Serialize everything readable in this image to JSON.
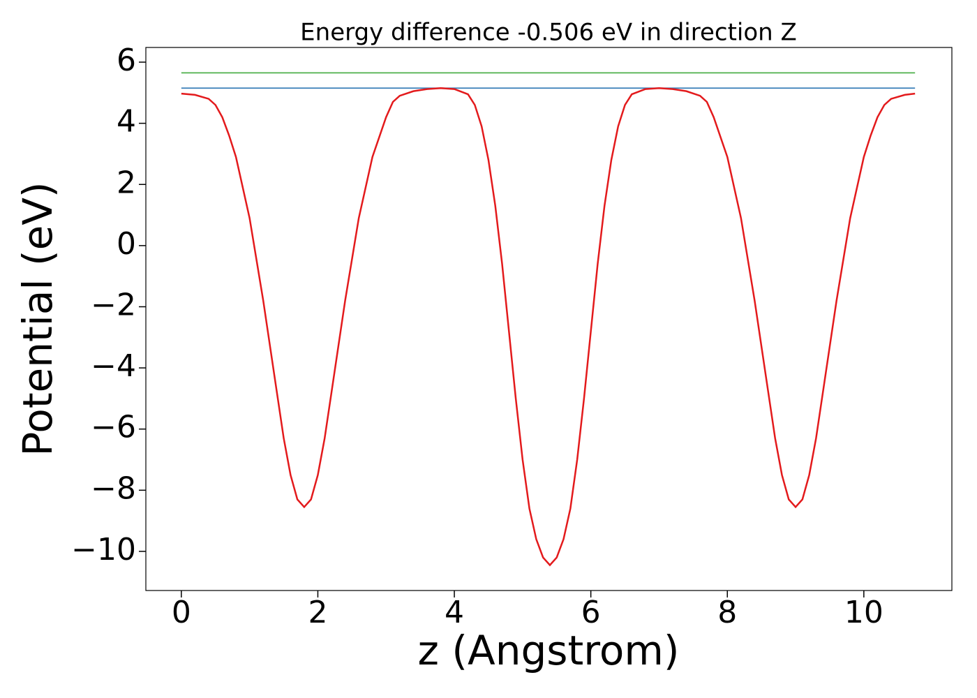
{
  "chart_data": {
    "type": "line",
    "title": "Energy difference -0.506 eV in direction Z",
    "xlabel": "z (Angstrom)",
    "ylabel": "Potential (eV)",
    "xlim": [
      -0.52,
      11.29
    ],
    "ylim": [
      -11.28,
      6.48
    ],
    "xticks": [
      0,
      2,
      4,
      6,
      8,
      10
    ],
    "yticks": [
      {
        "value": -10,
        "label": "−10"
      },
      {
        "value": -8,
        "label": "−8"
      },
      {
        "value": -6,
        "label": "−6"
      },
      {
        "value": -4,
        "label": "−4"
      },
      {
        "value": -2,
        "label": "−2"
      },
      0,
      2,
      4,
      6
    ],
    "grid": false,
    "series": [
      {
        "color": "#e31a1c",
        "x": [
          0,
          0.2,
          0.4,
          0.5,
          0.6,
          0.7,
          0.8,
          1.0,
          1.2,
          1.4,
          1.5,
          1.6,
          1.7,
          1.8,
          1.9,
          2.0,
          2.1,
          2.2,
          2.4,
          2.6,
          2.8,
          3.0,
          3.1,
          3.2,
          3.4,
          3.6,
          3.8,
          4.0,
          4.2,
          4.3,
          4.4,
          4.5,
          4.6,
          4.7,
          4.8,
          4.9,
          5.0,
          5.1,
          5.2,
          5.3,
          5.4,
          5.5,
          5.6,
          5.7,
          5.8,
          5.9,
          6.0,
          6.1,
          6.2,
          6.3,
          6.4,
          6.5,
          6.6,
          6.8,
          7.0,
          7.2,
          7.4,
          7.6,
          7.7,
          7.8,
          8.0,
          8.2,
          8.4,
          8.6,
          8.7,
          8.8,
          8.9,
          9.0,
          9.1,
          9.2,
          9.3,
          9.4,
          9.6,
          9.8,
          10.0,
          10.1,
          10.2,
          10.3,
          10.4,
          10.6,
          10.75
        ],
        "values": [
          4.97,
          4.93,
          4.8,
          4.6,
          4.2,
          3.6,
          2.9,
          0.9,
          -1.8,
          -4.8,
          -6.3,
          -7.5,
          -8.3,
          -8.55,
          -8.3,
          -7.5,
          -6.3,
          -4.8,
          -1.8,
          0.9,
          2.9,
          4.2,
          4.7,
          4.9,
          5.05,
          5.12,
          5.15,
          5.12,
          4.95,
          4.6,
          3.9,
          2.8,
          1.3,
          -0.6,
          -2.8,
          -5.0,
          -7.0,
          -8.6,
          -9.6,
          -10.2,
          -10.45,
          -10.2,
          -9.6,
          -8.6,
          -7.0,
          -5.0,
          -2.8,
          -0.6,
          1.3,
          2.8,
          3.9,
          4.6,
          4.95,
          5.12,
          5.15,
          5.12,
          5.05,
          4.9,
          4.7,
          4.2,
          2.9,
          0.9,
          -1.8,
          -4.8,
          -6.3,
          -7.5,
          -8.3,
          -8.55,
          -8.3,
          -7.5,
          -6.3,
          -4.8,
          -1.8,
          0.9,
          2.9,
          3.6,
          4.2,
          4.6,
          4.8,
          4.93,
          4.97
        ]
      },
      {
        "color": "#4daf4a",
        "x": [
          0,
          10.75
        ],
        "values": [
          5.65,
          5.65
        ]
      },
      {
        "color": "#377eb8",
        "x": [
          0,
          10.75
        ],
        "values": [
          5.15,
          5.15
        ]
      }
    ]
  }
}
